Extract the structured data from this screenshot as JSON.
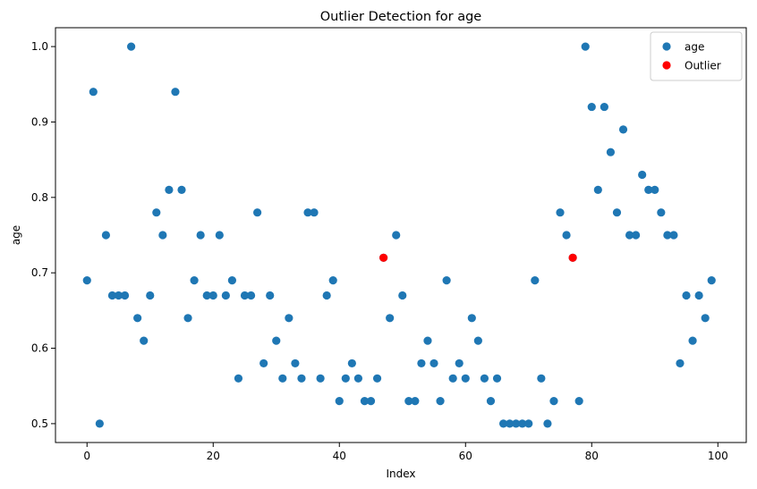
{
  "chart_data": {
    "type": "scatter",
    "title": "Outlier Detection for age",
    "xlabel": "Index",
    "ylabel": "age",
    "xlim": [
      -5,
      104.5
    ],
    "ylim": [
      0.475,
      1.025
    ],
    "xticks": [
      0,
      20,
      40,
      60,
      80,
      100
    ],
    "yticks": [
      0.5,
      0.6,
      0.7,
      0.8,
      0.9,
      1.0
    ],
    "grid": false,
    "legend": {
      "placement": "top-right"
    },
    "series": [
      {
        "name": "age",
        "color": "#1f77b4",
        "x": [
          0,
          1,
          2,
          3,
          4,
          5,
          6,
          7,
          8,
          9,
          10,
          11,
          12,
          13,
          14,
          15,
          16,
          17,
          18,
          19,
          20,
          21,
          22,
          23,
          24,
          25,
          26,
          27,
          28,
          29,
          30,
          31,
          32,
          33,
          34,
          35,
          36,
          37,
          38,
          39,
          40,
          41,
          42,
          43,
          44,
          45,
          46,
          47,
          48,
          49,
          50,
          51,
          52,
          53,
          54,
          55,
          56,
          57,
          58,
          59,
          60,
          61,
          62,
          63,
          64,
          65,
          66,
          67,
          68,
          69,
          70,
          71,
          72,
          73,
          74,
          75,
          76,
          77,
          78,
          79,
          80,
          81,
          82,
          83,
          84,
          85,
          86,
          87,
          88,
          89,
          90,
          91,
          92,
          93,
          94,
          95,
          96,
          97,
          98,
          99
        ],
        "y": [
          0.69,
          0.94,
          0.5,
          0.75,
          0.67,
          0.67,
          0.67,
          1.0,
          0.64,
          0.61,
          0.67,
          0.78,
          0.75,
          0.81,
          0.94,
          0.81,
          0.64,
          0.69,
          0.75,
          0.67,
          0.67,
          0.75,
          0.67,
          0.69,
          0.56,
          0.67,
          0.67,
          0.78,
          0.58,
          0.67,
          0.61,
          0.56,
          0.64,
          0.58,
          0.56,
          0.78,
          0.78,
          0.56,
          0.67,
          0.69,
          0.53,
          0.56,
          0.58,
          0.56,
          0.53,
          0.53,
          0.56,
          0.72,
          0.64,
          0.75,
          0.67,
          0.53,
          0.53,
          0.58,
          0.61,
          0.58,
          0.53,
          0.69,
          0.56,
          0.58,
          0.56,
          0.64,
          0.61,
          0.56,
          0.53,
          0.56,
          0.5,
          0.5,
          0.5,
          0.5,
          0.5,
          0.69,
          0.56,
          0.5,
          0.53,
          0.78,
          0.75,
          0.72,
          0.53,
          1.0,
          0.92,
          0.81,
          0.92,
          0.86,
          0.78,
          0.89,
          0.75,
          0.75,
          0.83,
          0.81,
          0.81,
          0.78,
          0.75,
          0.75,
          0.58,
          0.67,
          0.61,
          0.67,
          0.64,
          0.69
        ]
      },
      {
        "name": "Outlier",
        "color": "#ff0000",
        "x": [
          47,
          77
        ],
        "y": [
          0.72,
          0.72
        ]
      }
    ]
  }
}
